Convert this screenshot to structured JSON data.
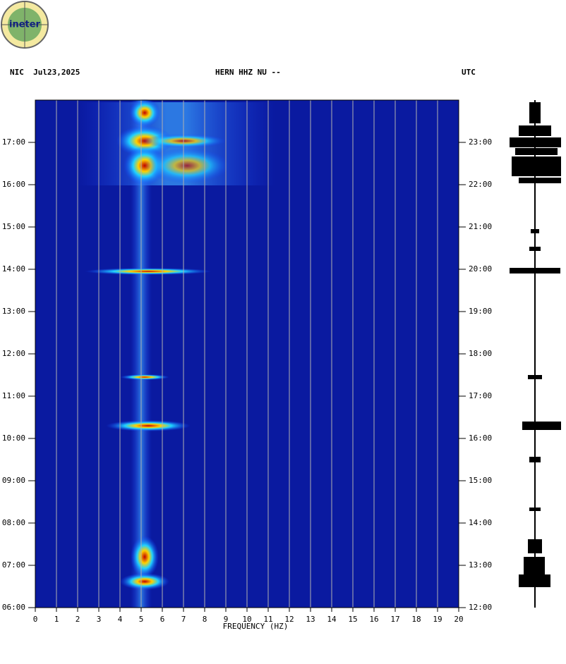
{
  "logo": "ineter",
  "chart_data": {
    "type": "spectrogram",
    "header_left": "NIC  Jul23,2025",
    "header_center": "HERN HHZ NU --",
    "header_right": "UTC",
    "x_label": "FREQUENCY (HZ)",
    "xlim": [
      0,
      20
    ],
    "xticks": [
      0,
      1,
      2,
      3,
      4,
      5,
      6,
      7,
      8,
      9,
      10,
      11,
      12,
      13,
      14,
      15,
      16,
      17,
      18,
      19,
      20
    ],
    "ylim": [
      6,
      18
    ],
    "yticks": [
      {
        "value": 6,
        "label": "06:00"
      },
      {
        "value": 7,
        "label": "07:00"
      },
      {
        "value": 8,
        "label": "08:00"
      },
      {
        "value": 9,
        "label": "09:00"
      },
      {
        "value": 10,
        "label": "10:00"
      },
      {
        "value": 11,
        "label": "11:00"
      },
      {
        "value": 12,
        "label": "12:00"
      },
      {
        "value": 13,
        "label": "13:00"
      },
      {
        "value": 14,
        "label": "14:00"
      },
      {
        "value": 15,
        "label": "15:00"
      },
      {
        "value": 16,
        "label": "16:00"
      },
      {
        "value": 17,
        "label": "17:00"
      }
    ],
    "y2lim": [
      12,
      24
    ],
    "y2ticks": [
      {
        "value": 12,
        "label": "12:00"
      },
      {
        "value": 13,
        "label": "13:00"
      },
      {
        "value": 14,
        "label": "14:00"
      },
      {
        "value": 15,
        "label": "15:00"
      },
      {
        "value": 16,
        "label": "16:00"
      },
      {
        "value": 17,
        "label": "17:00"
      },
      {
        "value": 18,
        "label": "18:00"
      },
      {
        "value": 19,
        "label": "19:00"
      },
      {
        "value": 20,
        "label": "20:00"
      },
      {
        "value": 21,
        "label": "21:00"
      },
      {
        "value": 22,
        "label": "22:00"
      },
      {
        "value": 23,
        "label": "23:00"
      }
    ],
    "grid": true,
    "grid_color": "#b0b0b0",
    "background_color": "#0a1aa0"
  }
}
